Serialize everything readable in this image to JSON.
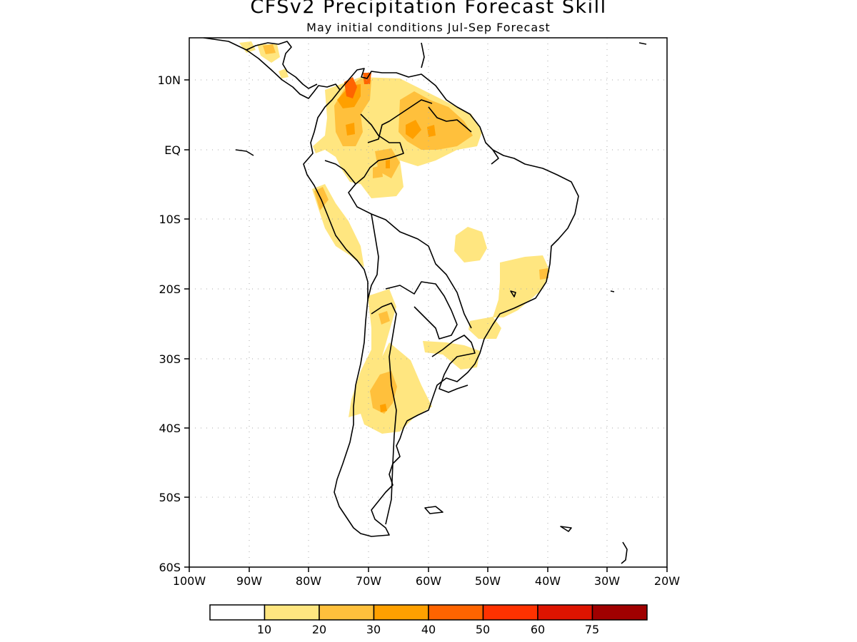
{
  "title": "CFSv2 Precipitation Forecast Skill",
  "subtitle": "May initial conditions  Jul-Sep Forecast",
  "map": {
    "region": "South America",
    "lon_range": [
      -100,
      -20
    ],
    "lat_range": [
      -60,
      15
    ],
    "grid": "dotted",
    "lat_labels": [
      "10N",
      "EQ",
      "10S",
      "20S",
      "30S",
      "40S",
      "50S",
      "60S"
    ],
    "lon_labels": [
      "100W",
      "90W",
      "80W",
      "70W",
      "60W",
      "50W",
      "40W",
      "30W",
      "20W"
    ]
  },
  "colorbar": {
    "labels": [
      "10",
      "20",
      "30",
      "40",
      "50",
      "60",
      "75"
    ],
    "colors": [
      "#ffffff",
      "#ffe680",
      "#ffc03c",
      "#ffa000",
      "#ff6400",
      "#ff3200",
      "#dd1400",
      "#a00000"
    ]
  }
}
